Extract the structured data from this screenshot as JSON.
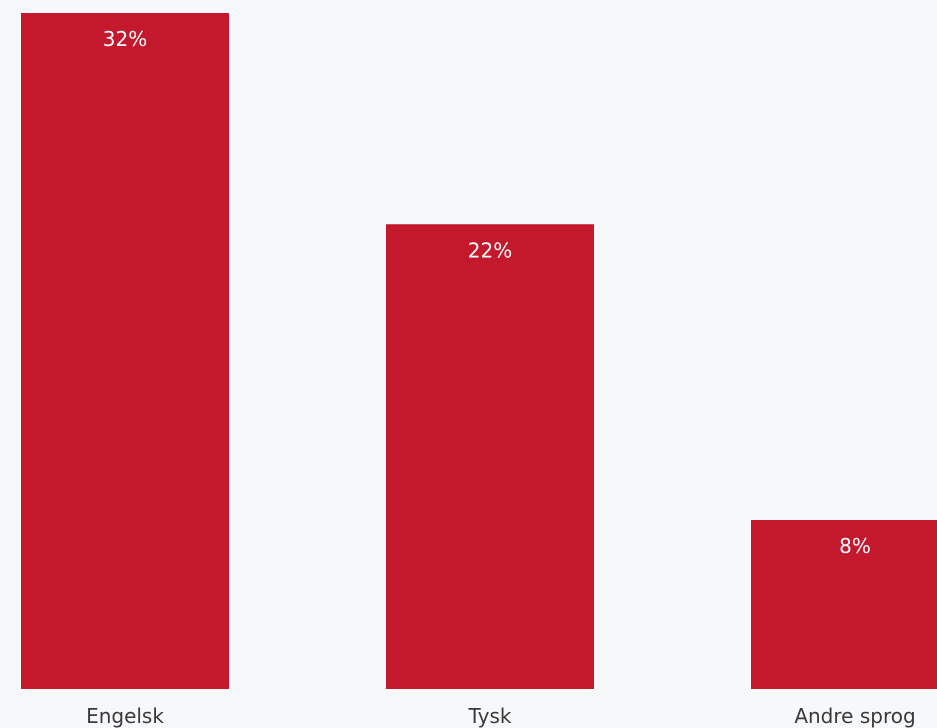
{
  "chart_data": {
    "type": "bar",
    "categories": [
      "Engelsk",
      "Tysk",
      "Andre sprog"
    ],
    "values": [
      32,
      22,
      8
    ],
    "value_labels": [
      "32%",
      "22%",
      "8%"
    ],
    "unit": "%",
    "ylim": [
      0,
      32
    ],
    "grid": false,
    "legend": "none",
    "title": "",
    "xlabel": "",
    "ylabel": ""
  },
  "colors": {
    "bar": "#c4192d",
    "background": "#f7f8fa",
    "value_text": "#ffffff",
    "category_text": "#3a3a3a"
  }
}
